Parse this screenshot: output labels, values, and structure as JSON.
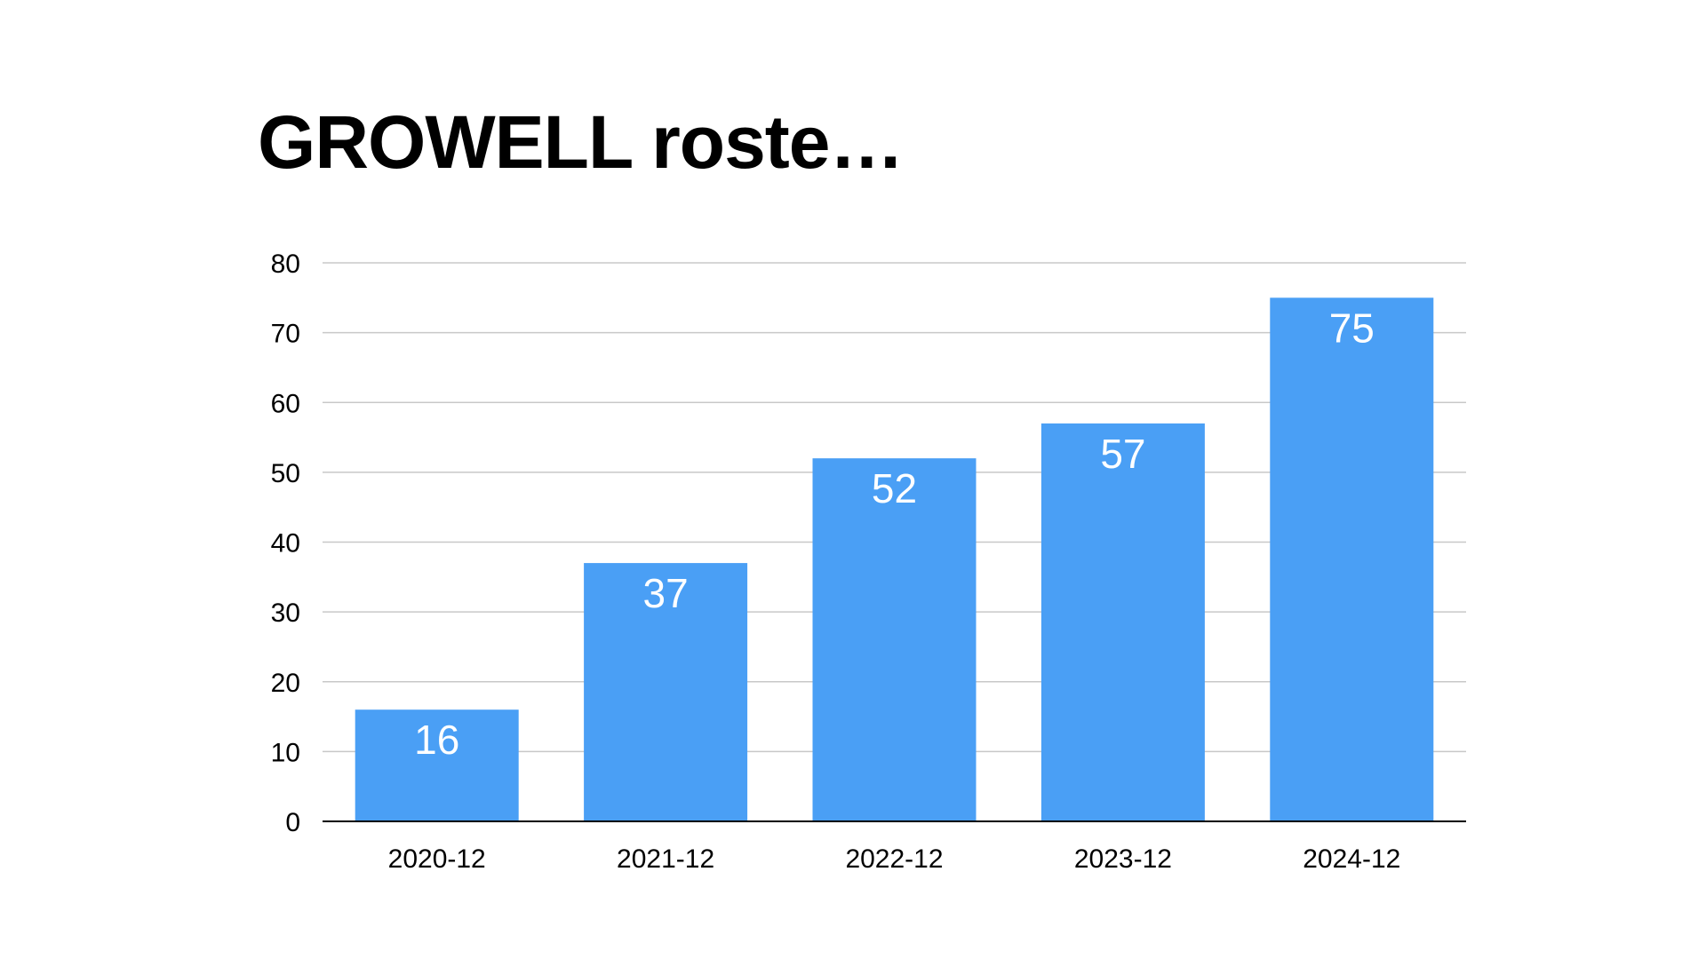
{
  "slide": {
    "title": "GROWELL roste…"
  },
  "chart_data": {
    "type": "bar",
    "categories": [
      "2020-12",
      "2021-12",
      "2022-12",
      "2023-12",
      "2024-12"
    ],
    "values": [
      16,
      37,
      52,
      57,
      75
    ],
    "data_labels": [
      "16",
      "37",
      "52",
      "57",
      "75"
    ],
    "y_ticks": [
      0,
      10,
      20,
      30,
      40,
      50,
      60,
      70,
      80
    ],
    "ylim": [
      0,
      80
    ],
    "grid": true,
    "legend": "none",
    "bar_color": "#4a9ff5",
    "grid_color": "#c8c8c8",
    "axis_color": "#000000",
    "label_color": "#ffffff"
  }
}
